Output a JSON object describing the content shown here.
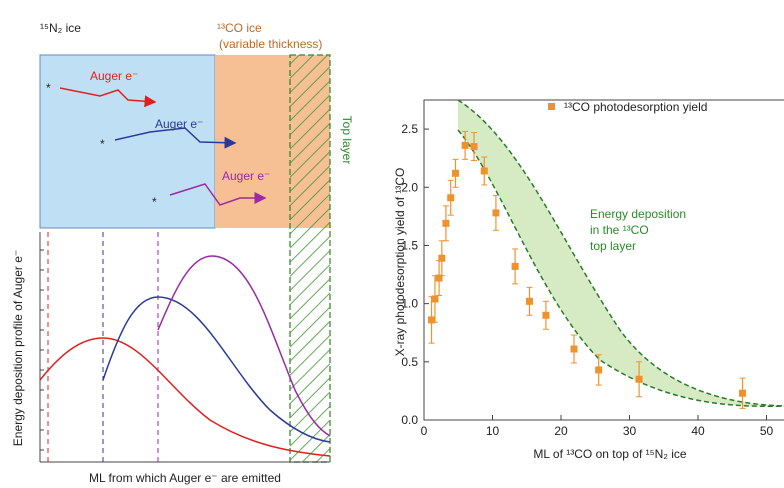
{
  "schematic": {
    "n2_label": "¹⁵N₂ ice",
    "co_label": "¹³CO ice",
    "co_note": "(variable thickness)",
    "top_layer": "Top layer",
    "auger": [
      "Auger e⁻",
      "Auger e⁻",
      "Auger e⁻"
    ],
    "emitter": "*",
    "ylabel": "Energy deposition profile of Auger e⁻",
    "xlabel": "ML from which Auger e⁻ are emitted"
  },
  "chart_data": {
    "type": "scatter",
    "xlabel": "ML of ¹³CO on top of ¹⁵N₂ ice",
    "ylabel": "X-ray photodesorption yield of ¹³CO",
    "annotation": [
      "Energy deposition",
      "in the ¹³CO",
      "top layer"
    ],
    "xlim": [
      0,
      60
    ],
    "ylim": [
      0,
      2.75
    ],
    "xticks": [
      0,
      10,
      20,
      30,
      40,
      50,
      60
    ],
    "yticks": [
      {
        "value": 0,
        "label": "0.0"
      },
      0.5,
      {
        "value": 1,
        "label": "1.0"
      },
      1.5,
      {
        "value": 2,
        "label": "2.0"
      },
      2.5
    ],
    "legend": "upper right",
    "series": [
      {
        "name": "¹³CO photodesorption yield",
        "color": "#f0922c",
        "x": [
          1.1,
          1.6,
          2.2,
          2.6,
          3.2,
          3.9,
          4.6,
          6.0,
          7.3,
          8.8,
          10.5,
          13.3,
          15.4,
          17.8,
          21.9,
          25.5,
          31.4,
          46.5
        ],
        "values": [
          0.86,
          1.04,
          1.22,
          1.39,
          1.69,
          1.91,
          2.12,
          2.36,
          2.35,
          2.14,
          1.78,
          1.32,
          1.02,
          0.9,
          0.61,
          0.43,
          0.35,
          0.23
        ],
        "errors": [
          0.2,
          0.2,
          0.15,
          0.15,
          0.15,
          0.15,
          0.12,
          0.12,
          0.12,
          0.12,
          0.15,
          0.15,
          0.12,
          0.12,
          0.12,
          0.13,
          0.15,
          0.13
        ]
      }
    ]
  }
}
